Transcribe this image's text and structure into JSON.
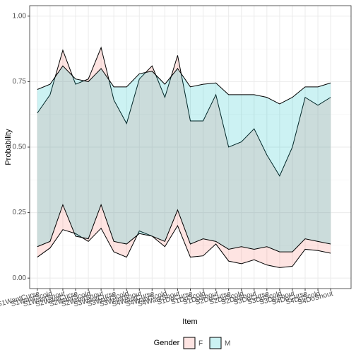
{
  "chart_data": {
    "type": "ribbon",
    "x_label": "Item",
    "y_label": "Probability",
    "categories": [
      "S1WantCurse",
      "S1WantScold",
      "S1WantShout",
      "S2WantCurse",
      "S2WantScold",
      "S2WantShout",
      "S3WantCurse",
      "S3WantScold",
      "S3WantShout",
      "S4WantCurse",
      "S4WantScold",
      "S4WantShout",
      "S1DoCurse",
      "S1DoScold",
      "S1DoShout",
      "S2DoCurse",
      "S2DoScold",
      "S2DoShout",
      "S3DoCurse",
      "S3DoScold",
      "S3DoShout",
      "S4DoCurse",
      "S4DoScold",
      "S4DoShout"
    ],
    "series": [
      {
        "name": "F",
        "color": "#F8766D",
        "lower": [
          0.08,
          0.115,
          0.185,
          0.17,
          0.14,
          0.19,
          0.1,
          0.08,
          0.18,
          0.16,
          0.12,
          0.2,
          0.08,
          0.085,
          0.13,
          0.065,
          0.055,
          0.07,
          0.05,
          0.04,
          0.045,
          0.11,
          0.105,
          0.095
        ],
        "upper": [
          0.63,
          0.7,
          0.87,
          0.74,
          0.76,
          0.88,
          0.68,
          0.59,
          0.76,
          0.81,
          0.69,
          0.85,
          0.6,
          0.6,
          0.7,
          0.5,
          0.52,
          0.57,
          0.47,
          0.39,
          0.5,
          0.69,
          0.66,
          0.69
        ]
      },
      {
        "name": "M",
        "color": "#00BFC4",
        "lower": [
          0.12,
          0.14,
          0.28,
          0.16,
          0.15,
          0.28,
          0.14,
          0.13,
          0.17,
          0.16,
          0.14,
          0.26,
          0.13,
          0.15,
          0.14,
          0.11,
          0.12,
          0.11,
          0.12,
          0.1,
          0.1,
          0.15,
          0.14,
          0.13
        ],
        "upper": [
          0.72,
          0.74,
          0.81,
          0.76,
          0.75,
          0.8,
          0.73,
          0.73,
          0.78,
          0.79,
          0.74,
          0.8,
          0.73,
          0.74,
          0.745,
          0.7,
          0.7,
          0.7,
          0.69,
          0.665,
          0.69,
          0.73,
          0.73,
          0.745
        ]
      }
    ],
    "ylim": [
      -0.04,
      1.04
    ],
    "yticks": [
      {
        "value": 0,
        "label": "0.00"
      },
      {
        "value": 0.25,
        "label": "0.25"
      },
      {
        "value": 0.5,
        "label": "0.50"
      },
      {
        "value": 0.75,
        "label": "0.75"
      },
      {
        "value": 1,
        "label": "1.00"
      }
    ],
    "grid": true,
    "legend_title": "Gender",
    "legend_position": "bottom",
    "fill_opacity": 0.2
  }
}
